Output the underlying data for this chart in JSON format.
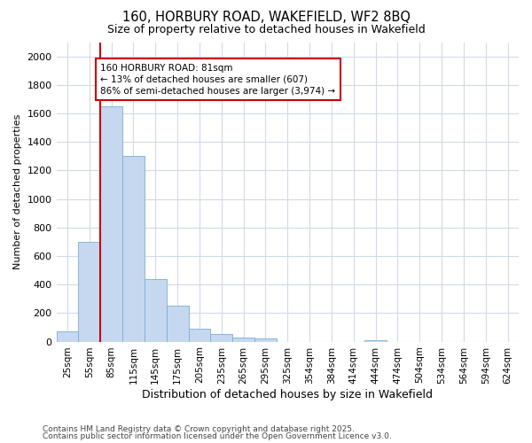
{
  "title_line1": "160, HORBURY ROAD, WAKEFIELD, WF2 8BQ",
  "title_line2": "Size of property relative to detached houses in Wakefield",
  "xlabel": "Distribution of detached houses by size in Wakefield",
  "ylabel": "Number of detached properties",
  "categories": [
    "25sqm",
    "55sqm",
    "85sqm",
    "115sqm",
    "145sqm",
    "175sqm",
    "205sqm",
    "235sqm",
    "265sqm",
    "295sqm",
    "325sqm",
    "354sqm",
    "384sqm",
    "414sqm",
    "444sqm",
    "474sqm",
    "504sqm",
    "534sqm",
    "564sqm",
    "594sqm",
    "624sqm"
  ],
  "values": [
    70,
    700,
    1650,
    1300,
    440,
    255,
    90,
    55,
    30,
    25,
    0,
    0,
    0,
    0,
    10,
    0,
    0,
    0,
    0,
    0,
    0
  ],
  "bar_color": "#c5d8f0",
  "bar_edge_color": "#7aaed6",
  "grid_color": "#d0dae8",
  "background_color": "#ffffff",
  "vline_color": "#cc0000",
  "vline_x_index": 2,
  "annotation_text": "160 HORBURY ROAD: 81sqm\n← 13% of detached houses are smaller (607)\n86% of semi-detached houses are larger (3,974) →",
  "annotation_box_color": "#ffffff",
  "annotation_border_color": "#cc0000",
  "ylim": [
    0,
    2100
  ],
  "yticks": [
    0,
    200,
    400,
    600,
    800,
    1000,
    1200,
    1400,
    1600,
    1800,
    2000
  ],
  "footnote1": "Contains HM Land Registry data © Crown copyright and database right 2025.",
  "footnote2": "Contains public sector information licensed under the Open Government Licence v3.0."
}
